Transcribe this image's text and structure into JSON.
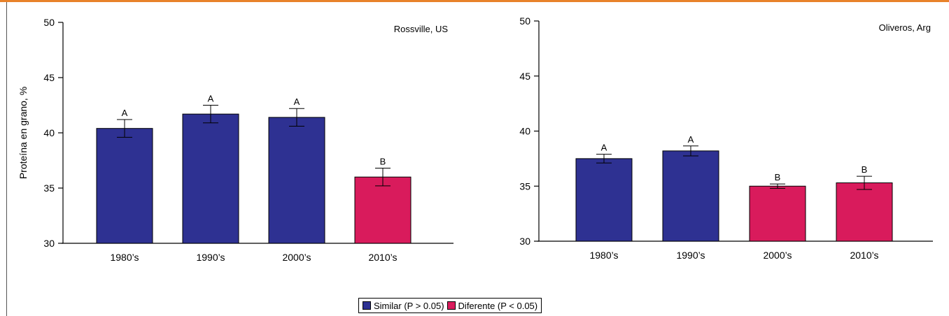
{
  "colors": {
    "similar": "#2e3192",
    "different": "#d91b5c",
    "top_rule": "#e8822a"
  },
  "legend": {
    "items": [
      {
        "label": "Similar (P > 0.05)",
        "color": "#2e3192"
      },
      {
        "label": "Diferente (P < 0.05)",
        "color": "#d91b5c"
      }
    ]
  },
  "chart_data": [
    {
      "type": "bar",
      "annotation": "Rossville, US",
      "ylabel": "Proteína en grano, %",
      "xlabel": "",
      "ylim": [
        30,
        50
      ],
      "yticks": [
        30,
        35,
        40,
        45,
        50
      ],
      "categories": [
        "1980’s",
        "1990’s",
        "2000’s",
        "2010’s"
      ],
      "values": [
        40.4,
        41.7,
        41.4,
        36.0
      ],
      "errors": [
        0.8,
        0.8,
        0.8,
        0.8
      ],
      "letters": [
        "A",
        "A",
        "A",
        "B"
      ],
      "groups": [
        "similar",
        "similar",
        "similar",
        "different"
      ]
    },
    {
      "type": "bar",
      "annotation": "Oliveros, Arg",
      "ylabel": "",
      "xlabel": "",
      "ylim": [
        30,
        50
      ],
      "yticks": [
        30,
        35,
        40,
        45,
        50
      ],
      "categories": [
        "1980’s",
        "1990’s",
        "2000’s",
        "2010’s"
      ],
      "values": [
        37.5,
        38.2,
        35.0,
        35.3
      ],
      "errors": [
        0.4,
        0.45,
        0.2,
        0.6
      ],
      "letters": [
        "A",
        "A",
        "B",
        "B"
      ],
      "groups": [
        "similar",
        "similar",
        "different",
        "different"
      ]
    }
  ]
}
